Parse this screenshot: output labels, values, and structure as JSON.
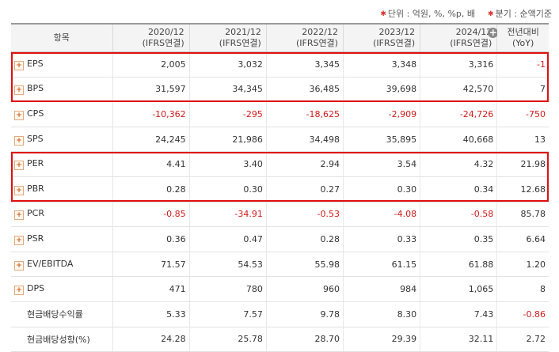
{
  "notes": {
    "unit": "단위 : 억원, %, %p, 배",
    "period": "분기 : 순액기준"
  },
  "header": {
    "item": "항목",
    "periods": [
      {
        "year": "2020/12",
        "basis": "(IFRS연결)"
      },
      {
        "year": "2021/12",
        "basis": "(IFRS연결)"
      },
      {
        "year": "2022/12",
        "basis": "(IFRS연결)"
      },
      {
        "year": "2023/12",
        "basis": "(IFRS연결)"
      },
      {
        "year": "2024/12",
        "basis": "(IFRS연결)"
      }
    ],
    "yoy_line1": "전년대비",
    "yoy_line2": "(YoY)",
    "expand_icon": "plus-circle-icon"
  },
  "rows": [
    {
      "label": "EPS",
      "expandable": true,
      "values": [
        "2,005",
        "3,032",
        "3,345",
        "3,348",
        "3,316"
      ],
      "yoy": "-1"
    },
    {
      "label": "BPS",
      "expandable": true,
      "values": [
        "31,597",
        "34,345",
        "36,485",
        "39,698",
        "42,570"
      ],
      "yoy": "7"
    },
    {
      "label": "CPS",
      "expandable": true,
      "values": [
        "-10,362",
        "-295",
        "-18,625",
        "-2,909",
        "-24,726"
      ],
      "yoy": "-750"
    },
    {
      "label": "SPS",
      "expandable": true,
      "values": [
        "24,245",
        "21,986",
        "34,498",
        "35,895",
        "40,668"
      ],
      "yoy": "13"
    },
    {
      "label": "PER",
      "expandable": true,
      "values": [
        "4.41",
        "3.40",
        "2.94",
        "3.54",
        "4.32"
      ],
      "yoy": "21.98"
    },
    {
      "label": "PBR",
      "expandable": true,
      "values": [
        "0.28",
        "0.30",
        "0.27",
        "0.30",
        "0.34"
      ],
      "yoy": "12.68"
    },
    {
      "label": "PCR",
      "expandable": true,
      "values": [
        "-0.85",
        "-34.91",
        "-0.53",
        "-4.08",
        "-0.58"
      ],
      "yoy": "85.78"
    },
    {
      "label": "PSR",
      "expandable": true,
      "values": [
        "0.36",
        "0.47",
        "0.28",
        "0.33",
        "0.35"
      ],
      "yoy": "6.64"
    },
    {
      "label": "EV/EBITDA",
      "expandable": true,
      "values": [
        "71.57",
        "54.53",
        "55.98",
        "61.15",
        "61.88"
      ],
      "yoy": "1.20"
    },
    {
      "label": "DPS",
      "expandable": true,
      "values": [
        "471",
        "780",
        "960",
        "984",
        "1,065"
      ],
      "yoy": "8"
    },
    {
      "label": "현금배당수익률",
      "expandable": false,
      "values": [
        "5.33",
        "7.57",
        "9.78",
        "8.30",
        "7.43"
      ],
      "yoy": "-0.86"
    },
    {
      "label": "현금배당성향(%)",
      "expandable": false,
      "values": [
        "24.28",
        "25.78",
        "28.70",
        "29.39",
        "32.11"
      ],
      "yoy": "2.72"
    }
  ],
  "colors": {
    "negative": "#d21a1a",
    "highlight_box": "#e01010"
  },
  "highlight_groups": [
    [
      "EPS",
      "BPS"
    ],
    [
      "PER",
      "PBR"
    ]
  ]
}
